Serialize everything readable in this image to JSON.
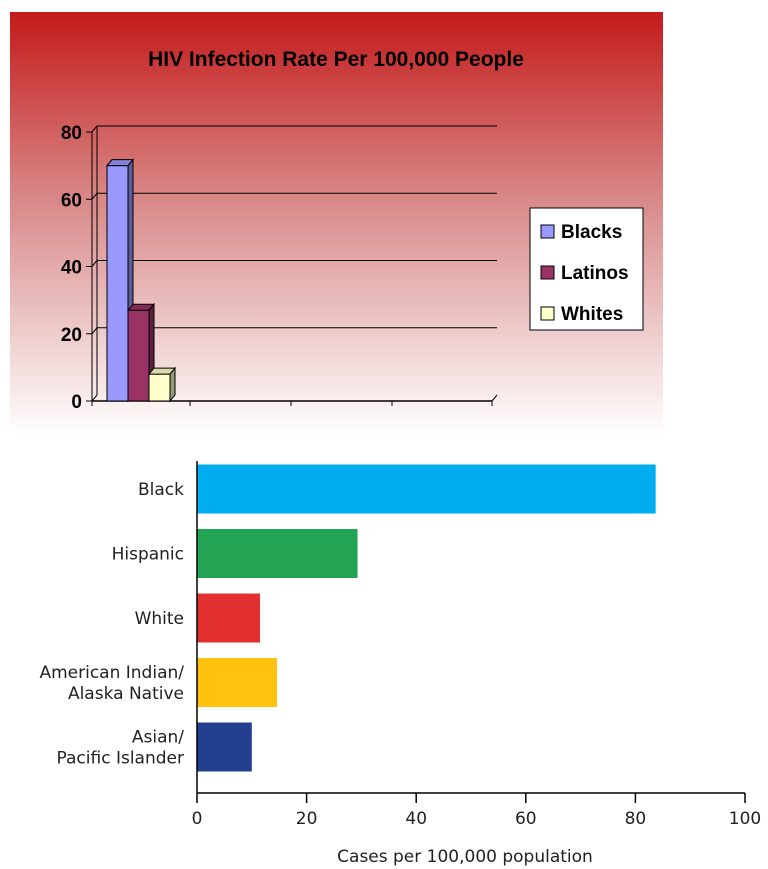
{
  "chart_data": [
    {
      "type": "bar",
      "title": "HIV Infection Rate Per 100,000 People",
      "ylim": [
        0,
        80
      ],
      "yticks": [
        "0",
        "20",
        "40",
        "60",
        "80"
      ],
      "series": [
        {
          "name": "Blacks",
          "value": 70,
          "color": "#9999ff"
        },
        {
          "name": "Latinos",
          "value": 27,
          "color": "#993366"
        },
        {
          "name": "Whites",
          "value": 8,
          "color": "#ffffcc"
        }
      ],
      "grid": true,
      "legend_position": "right",
      "background_gradient": [
        "#c41a1a",
        "#ffffff"
      ]
    },
    {
      "type": "bar",
      "orientation": "horizontal",
      "categories": [
        "Black",
        "Hispanic",
        "White",
        "American Indian/ Alaska Native",
        "Asian/ Pacific Islander"
      ],
      "category_lines": [
        [
          "Black"
        ],
        [
          "Hispanic"
        ],
        [
          "White"
        ],
        [
          "American Indian/",
          "Alaska Native"
        ],
        [
          "Asian/",
          "Pacific Islander"
        ]
      ],
      "values": [
        83.7,
        29.3,
        11.5,
        14.6,
        10.0
      ],
      "colors": [
        "#00aeef",
        "#23a455",
        "#e22f2f",
        "#ffc20e",
        "#233f8f"
      ],
      "xlabel": "Cases per 100,000 population",
      "xlim": [
        0,
        100
      ],
      "xticks": [
        "0",
        "20",
        "40",
        "60",
        "80",
        "100"
      ]
    }
  ]
}
